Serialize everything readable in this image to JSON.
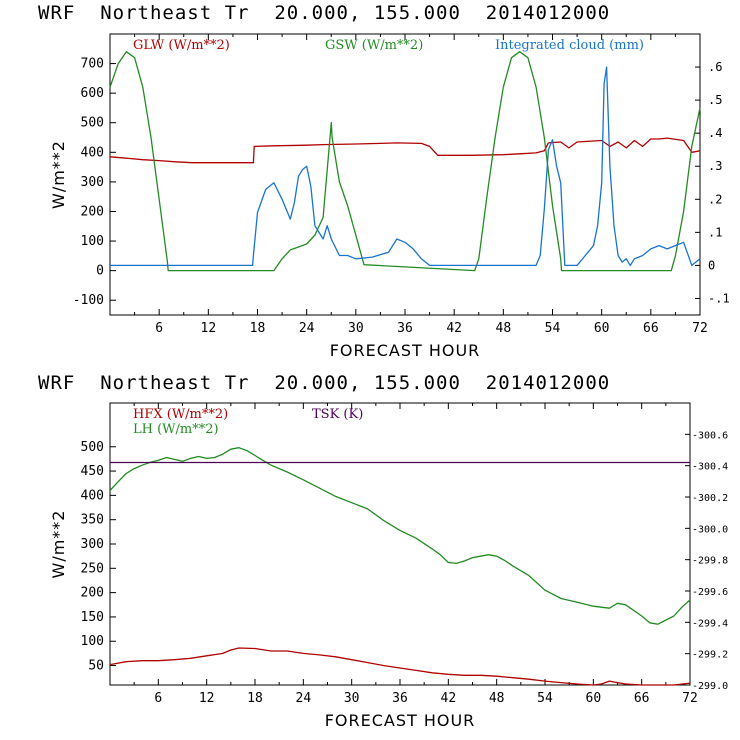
{
  "titles": {
    "top": "WRF  Northeast Tr  20.000, 155.000  2014012000",
    "bottom": "WRF  Northeast Tr  20.000, 155.000  2014012000"
  },
  "colors": {
    "red": "#b00000",
    "green": "#228b22",
    "blue": "#1874cd",
    "purple": "#4b0055"
  },
  "chart_data": [
    {
      "type": "line",
      "xlabel": "FORECAST HOUR",
      "ylabel": "W/m**2",
      "xlim": [
        0,
        72
      ],
      "ylim": [
        -150,
        800
      ],
      "y2lim": [
        -0.15,
        0.7
      ],
      "xticks": [
        "6",
        "12",
        "18",
        "24",
        "30",
        "36",
        "42",
        "48",
        "54",
        "60",
        "66",
        "72"
      ],
      "yticks": [
        "-100",
        "0",
        "100",
        "200",
        "300",
        "400",
        "500",
        "600",
        "700"
      ],
      "y2ticks": [
        "-.1",
        "0",
        ".1",
        ".2",
        ".3",
        ".4",
        ".5",
        ".6"
      ],
      "series": [
        {
          "name": "GLW (W/m**2)",
          "axis": "left",
          "color": "#b00000",
          "x": [
            0,
            2,
            4,
            6,
            8,
            10,
            12,
            14,
            17.5,
            17.6,
            20,
            24,
            26,
            30,
            33,
            35,
            38,
            39,
            40,
            44,
            48,
            50,
            52,
            53,
            53.5,
            55,
            56,
            57,
            60,
            61,
            62,
            63,
            64,
            65,
            66,
            67,
            68,
            70,
            71,
            72
          ],
          "y": [
            385,
            380,
            375,
            372,
            368,
            365,
            365,
            365,
            365,
            420,
            422,
            424,
            426,
            428,
            430,
            432,
            430,
            420,
            390,
            390,
            392,
            395,
            398,
            405,
            432,
            435,
            415,
            435,
            440,
            420,
            435,
            415,
            440,
            420,
            445,
            445,
            448,
            440,
            400,
            405
          ]
        },
        {
          "name": "GSW (W/m**2)",
          "axis": "left",
          "color": "#228b22",
          "x": [
            0,
            1,
            2,
            3,
            4,
            5,
            6,
            7,
            7.1,
            20,
            21,
            22,
            23,
            24,
            25,
            26,
            27,
            27.1,
            28,
            29,
            30,
            31,
            44.5,
            45,
            46,
            47,
            48,
            49,
            50,
            51,
            52,
            53,
            54,
            55,
            55.1,
            68.5,
            69,
            70,
            71,
            72
          ],
          "y": [
            620,
            700,
            740,
            720,
            620,
            450,
            240,
            30,
            0,
            0,
            40,
            70,
            80,
            90,
            120,
            180,
            500,
            450,
            300,
            220,
            120,
            20,
            0,
            40,
            250,
            450,
            620,
            720,
            740,
            720,
            620,
            450,
            220,
            40,
            0,
            0,
            50,
            200,
            420,
            550
          ]
        },
        {
          "name": "Integrated cloud (mm)",
          "axis": "right",
          "color": "#1874cd",
          "x": [
            0,
            17.4,
            17.5,
            18,
            19,
            20,
            21,
            22,
            22.5,
            23,
            23.5,
            24,
            24.5,
            25,
            25.5,
            26,
            26.5,
            27,
            28,
            29,
            30,
            32,
            34,
            35,
            36,
            37,
            38,
            39,
            52,
            52.5,
            53,
            53.5,
            54,
            54.5,
            55,
            55.5,
            56,
            57,
            58,
            59,
            59.5,
            60,
            60.3,
            60.6,
            61,
            61.5,
            62,
            62.5,
            63,
            63.5,
            64,
            65,
            66,
            67,
            68,
            69,
            70,
            71,
            72
          ],
          "y": [
            0,
            0,
            0.03,
            0.16,
            0.23,
            0.25,
            0.2,
            0.14,
            0.19,
            0.27,
            0.29,
            0.3,
            0.24,
            0.12,
            0.1,
            0.08,
            0.12,
            0.08,
            0.03,
            0.03,
            0.02,
            0.025,
            0.04,
            0.08,
            0.07,
            0.05,
            0.02,
            0,
            0,
            0.03,
            0.17,
            0.35,
            0.38,
            0.3,
            0.25,
            0,
            0,
            0,
            0.03,
            0.06,
            0.12,
            0.25,
            0.55,
            0.6,
            0.3,
            0.12,
            0.03,
            0.01,
            0.02,
            0,
            0.02,
            0.03,
            0.05,
            0.06,
            0.05,
            0.06,
            0.07,
            0,
            0.02
          ]
        }
      ]
    },
    {
      "type": "line",
      "xlabel": "FORECAST HOUR",
      "ylabel": "W/m**2",
      "xlim": [
        0,
        72
      ],
      "ylim": [
        10,
        590
      ],
      "y2lim": [
        299.0,
        300.8
      ],
      "xticks": [
        "6",
        "12",
        "18",
        "24",
        "30",
        "36",
        "42",
        "48",
        "54",
        "60",
        "66",
        "72"
      ],
      "yticks": [
        "50",
        "100",
        "150",
        "200",
        "250",
        "300",
        "350",
        "400",
        "450",
        "500"
      ],
      "y2ticks": [
        "299.0",
        "299.2",
        "299.4",
        "299.6",
        "299.8",
        "300.0",
        "300.2",
        "300.4",
        "300.6"
      ],
      "series": [
        {
          "name": "HFX (W/m**2)",
          "axis": "left",
          "color": "#b00000",
          "x": [
            0,
            2,
            4,
            6,
            8,
            10,
            12,
            14,
            15,
            16,
            18,
            20,
            22,
            24,
            26,
            28,
            30,
            32,
            34,
            36,
            38,
            40,
            42,
            44,
            46,
            48,
            50,
            52,
            54,
            56,
            58,
            60,
            61,
            62,
            63,
            64,
            66,
            68,
            70,
            72
          ],
          "y": [
            52,
            58,
            60,
            60,
            62,
            65,
            70,
            75,
            82,
            86,
            85,
            80,
            80,
            75,
            72,
            68,
            62,
            56,
            50,
            45,
            40,
            35,
            32,
            30,
            30,
            28,
            25,
            22,
            18,
            15,
            12,
            10,
            12,
            18,
            15,
            12,
            10,
            10,
            10,
            14
          ]
        },
        {
          "name": "LH (W/m**2)",
          "axis": "left",
          "color": "#228b22",
          "x": [
            0,
            1,
            2,
            3,
            4,
            5,
            6,
            7,
            8,
            9,
            10,
            11,
            12,
            13,
            14,
            15,
            16,
            17,
            18,
            19,
            20,
            22,
            24,
            26,
            28,
            30,
            32,
            34,
            36,
            38,
            40,
            41,
            42,
            43,
            44,
            45,
            46,
            47,
            48,
            49,
            50,
            52,
            54,
            56,
            58,
            60,
            62,
            63,
            64,
            66,
            67,
            68,
            70,
            71,
            72
          ],
          "y": [
            410,
            428,
            445,
            455,
            462,
            468,
            472,
            478,
            474,
            470,
            476,
            480,
            476,
            478,
            485,
            495,
            498,
            492,
            482,
            472,
            462,
            448,
            432,
            415,
            398,
            385,
            372,
            348,
            328,
            312,
            290,
            278,
            262,
            260,
            265,
            272,
            275,
            278,
            275,
            266,
            255,
            235,
            205,
            188,
            180,
            172,
            168,
            178,
            175,
            152,
            138,
            135,
            152,
            170,
            185
          ]
        },
        {
          "name": "TSK (K)",
          "axis": "right",
          "color": "#4b0055",
          "x": [
            0,
            72
          ],
          "y": [
            300.42,
            300.42
          ]
        }
      ]
    }
  ]
}
